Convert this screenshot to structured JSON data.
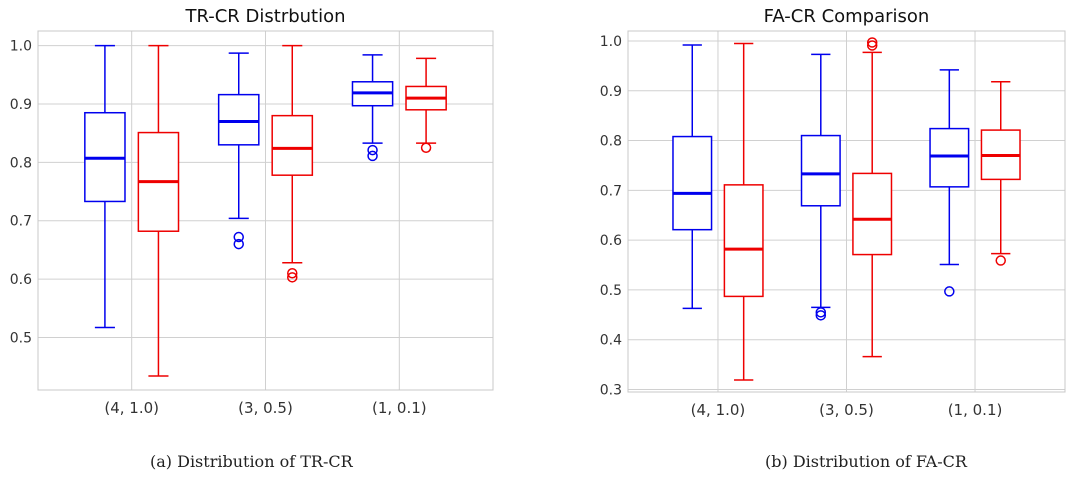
{
  "chart_data": [
    {
      "type": "box",
      "title": "TR-CR Distrbution",
      "categories": [
        "(4, 1.0)",
        "(3, 0.5)",
        "(1, 0.1)"
      ],
      "ylim": [
        0.41,
        1.025
      ],
      "yticks": [
        "0.5",
        "0.6",
        "0.7",
        "0.8",
        "0.9",
        "1.0"
      ],
      "grid": true,
      "series": [
        {
          "color": "#0000ee",
          "boxes": [
            {
              "whislo": 0.517,
              "q1": 0.733,
              "med": 0.807,
              "q3": 0.885,
              "whishi": 1.0,
              "fliers": []
            },
            {
              "whislo": 0.704,
              "q1": 0.83,
              "med": 0.87,
              "q3": 0.916,
              "whishi": 0.987,
              "fliers": [
                0.672,
                0.66
              ]
            },
            {
              "whislo": 0.833,
              "q1": 0.897,
              "med": 0.919,
              "q3": 0.938,
              "whishi": 0.984,
              "fliers": [
                0.821,
                0.811
              ]
            }
          ]
        },
        {
          "color": "#ee0000",
          "boxes": [
            {
              "whislo": 0.434,
              "q1": 0.682,
              "med": 0.767,
              "q3": 0.851,
              "whishi": 1.0,
              "fliers": []
            },
            {
              "whislo": 0.628,
              "q1": 0.778,
              "med": 0.824,
              "q3": 0.88,
              "whishi": 1.0,
              "fliers": [
                0.61,
                0.603
              ]
            },
            {
              "whislo": 0.833,
              "q1": 0.89,
              "med": 0.91,
              "q3": 0.93,
              "whishi": 0.978,
              "fliers": [
                0.825
              ]
            }
          ]
        }
      ]
    },
    {
      "type": "box",
      "title": "FA-CR Comparison",
      "categories": [
        "(4, 1.0)",
        "(3, 0.5)",
        "(1, 0.1)"
      ],
      "ylim": [
        0.295,
        1.02
      ],
      "yticks": [
        "0.3",
        "0.4",
        "0.5",
        "0.6",
        "0.7",
        "0.8",
        "0.9",
        "1.0"
      ],
      "grid": true,
      "series": [
        {
          "color": "#0000ee",
          "boxes": [
            {
              "whislo": 0.463,
              "q1": 0.621,
              "med": 0.694,
              "q3": 0.808,
              "whishi": 0.992,
              "fliers": []
            },
            {
              "whislo": 0.465,
              "q1": 0.669,
              "med": 0.733,
              "q3": 0.81,
              "whishi": 0.973,
              "fliers": [
                0.455,
                0.449
              ]
            },
            {
              "whislo": 0.551,
              "q1": 0.707,
              "med": 0.769,
              "q3": 0.824,
              "whishi": 0.942,
              "fliers": [
                0.497
              ]
            }
          ]
        },
        {
          "color": "#ee0000",
          "boxes": [
            {
              "whislo": 0.319,
              "q1": 0.487,
              "med": 0.582,
              "q3": 0.711,
              "whishi": 0.995,
              "fliers": []
            },
            {
              "whislo": 0.366,
              "q1": 0.571,
              "med": 0.642,
              "q3": 0.734,
              "whishi": 0.977,
              "fliers": [
                0.997,
                0.991
              ]
            },
            {
              "whislo": 0.573,
              "q1": 0.722,
              "med": 0.77,
              "q3": 0.821,
              "whishi": 0.918,
              "fliers": [
                0.559
              ]
            }
          ]
        }
      ]
    }
  ],
  "captions": {
    "a": "(a) Distribution of TR-CR",
    "b": "(b) Distribution of FA-CR"
  }
}
